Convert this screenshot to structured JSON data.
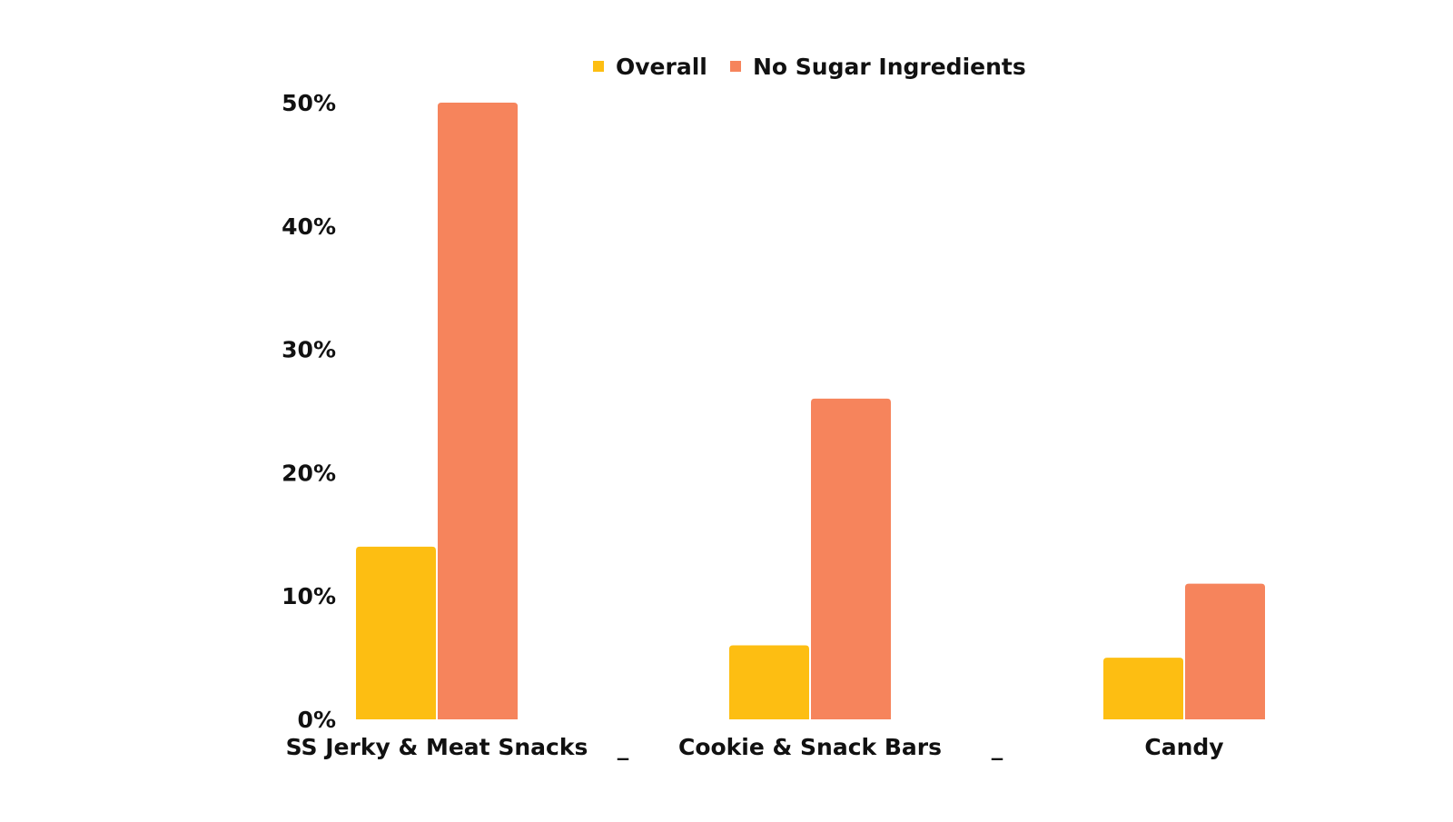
{
  "chart_data": {
    "type": "bar",
    "title": "",
    "xlabel": "",
    "ylabel": "",
    "categories": [
      "SS Jerky & Meat Snacks",
      "Cookie & Snack Bars",
      "Candy"
    ],
    "series": [
      {
        "name": "Overall",
        "color": "#FDBE12",
        "values": [
          14,
          6,
          5
        ]
      },
      {
        "name": "No Sugar Ingredients",
        "color": "#F6845C",
        "values": [
          50,
          26,
          11
        ]
      }
    ],
    "ylim": [
      0,
      50
    ],
    "yticks": [
      "0%",
      "10%",
      "20%",
      "30%",
      "40%",
      "50%"
    ],
    "ytick_values": [
      0,
      10,
      20,
      30,
      40,
      50
    ],
    "separator_text": "_",
    "grid": false,
    "legend_position": "top-center"
  }
}
